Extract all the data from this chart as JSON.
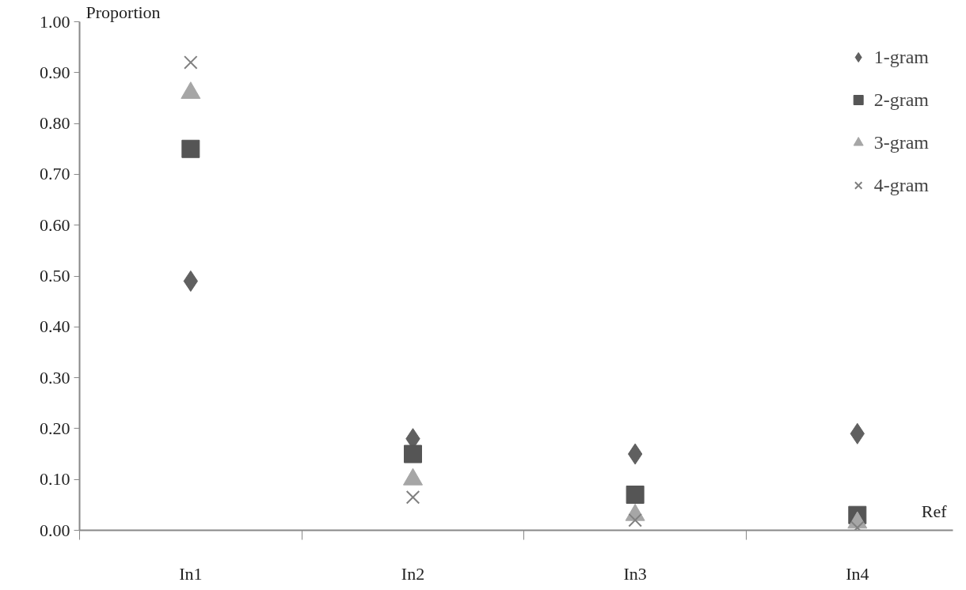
{
  "chart_data": {
    "type": "scatter",
    "ylabel": "Proportion",
    "xlabel": "Ref",
    "categories": [
      "In1",
      "In2",
      "In3",
      "In4"
    ],
    "series": [
      {
        "name": "1-gram",
        "color": "#606060",
        "marker": "diamond",
        "values": [
          0.49,
          0.18,
          0.15,
          0.19
        ]
      },
      {
        "name": "2-gram",
        "color": "#555555",
        "marker": "square",
        "values": [
          0.75,
          0.15,
          0.07,
          0.03
        ]
      },
      {
        "name": "3-gram",
        "color": "#a6a6a6",
        "marker": "triangle",
        "values": [
          0.86,
          0.1,
          0.03,
          0.015
        ]
      },
      {
        "name": "4-gram",
        "color": "#808080",
        "marker": "cross",
        "values": [
          0.92,
          0.065,
          0.02,
          0.005
        ]
      }
    ],
    "ylim": [
      0,
      1
    ],
    "yticks": [
      {
        "value": 0,
        "label": "0.00"
      },
      {
        "value": 0.1,
        "label": "0.10"
      },
      {
        "value": 0.2,
        "label": "0.20"
      },
      {
        "value": 0.3,
        "label": "0.30"
      },
      {
        "value": 0.4,
        "label": "0.40"
      },
      {
        "value": 0.5,
        "label": "0.50"
      },
      {
        "value": 0.6,
        "label": "0.60"
      },
      {
        "value": 0.7,
        "label": "0.70"
      },
      {
        "value": 0.8,
        "label": "0.80"
      },
      {
        "value": 0.9,
        "label": "0.90"
      },
      {
        "value": 1.0,
        "label": "1.00"
      }
    ],
    "grid": false,
    "legend": "top right"
  }
}
